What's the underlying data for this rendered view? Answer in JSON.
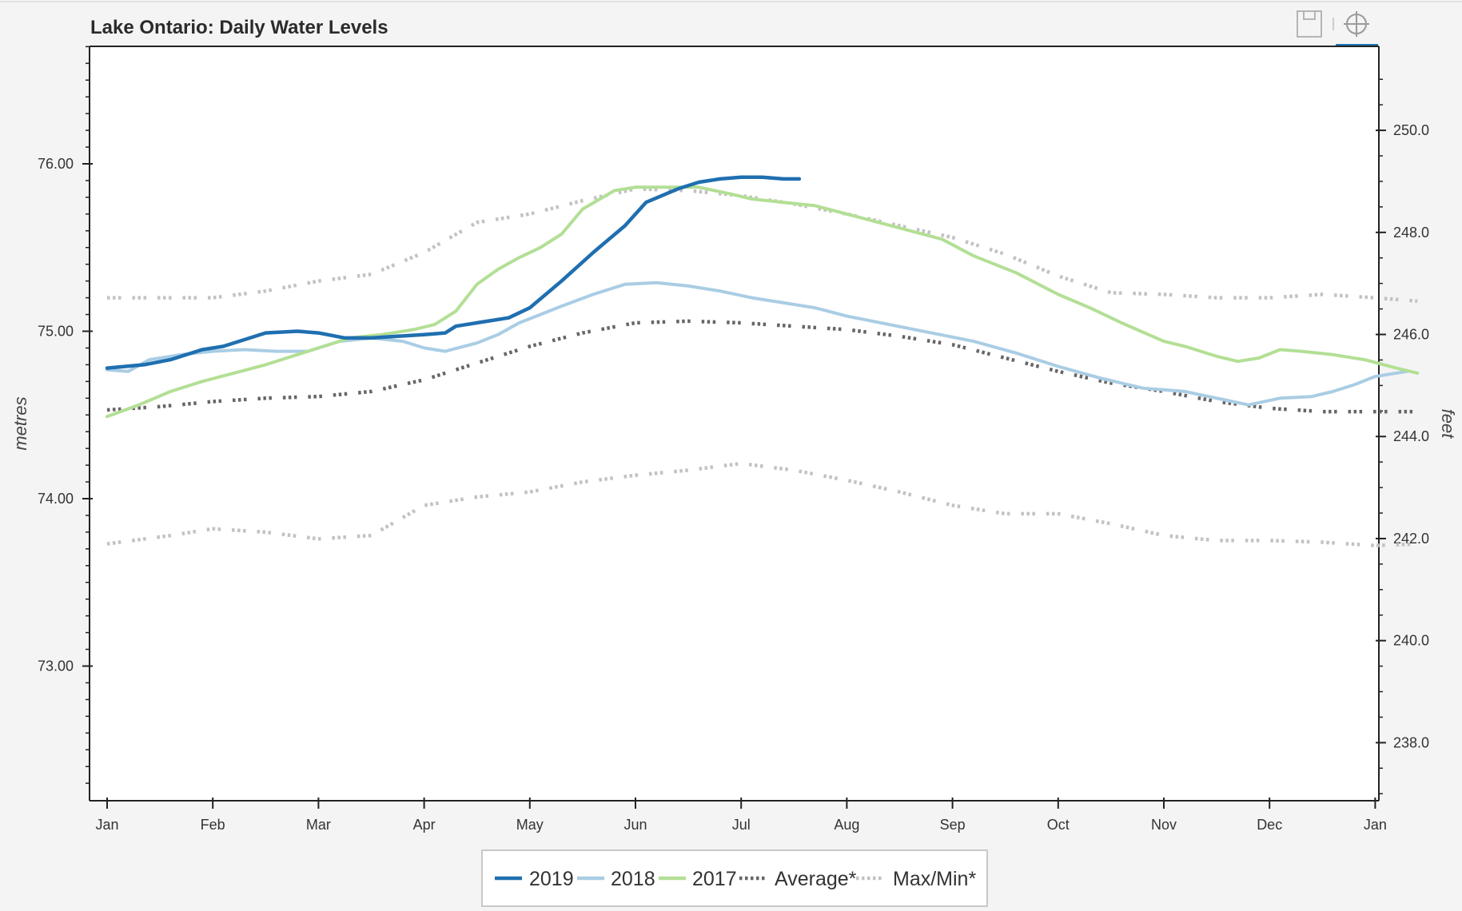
{
  "chart_data": {
    "type": "line",
    "title": "Lake Ontario: Daily Water Levels",
    "ylabel": "metres",
    "y2label": "feet",
    "ylim": [
      72.25,
      76.75
    ],
    "yticks": [
      "73.00",
      "74.00",
      "75.00",
      "76.00"
    ],
    "y2ticks": [
      "238.0",
      "240.0",
      "242.0",
      "244.0",
      "246.0",
      "248.0",
      "250.0"
    ],
    "xlim": [
      0,
      12
    ],
    "xticks": [
      "Jan",
      "Feb",
      "Mar",
      "Apr",
      "May",
      "Jun",
      "Jul",
      "Aug",
      "Sep",
      "Oct",
      "Nov",
      "Dec",
      "Jan"
    ],
    "legend_position": "bottom",
    "series": [
      {
        "name": "2019",
        "color": "#1f6fb0",
        "style": "solid",
        "points": [
          [
            0,
            74.78
          ],
          [
            0.35,
            74.8
          ],
          [
            0.6,
            74.83
          ],
          [
            0.9,
            74.89
          ],
          [
            1.1,
            74.91
          ],
          [
            1.3,
            74.95
          ],
          [
            1.5,
            74.99
          ],
          [
            1.8,
            75.0
          ],
          [
            2.0,
            74.99
          ],
          [
            2.25,
            74.96
          ],
          [
            2.5,
            74.96
          ],
          [
            2.75,
            74.97
          ],
          [
            3.0,
            74.98
          ],
          [
            3.2,
            74.99
          ],
          [
            3.3,
            75.03
          ],
          [
            3.6,
            75.06
          ],
          [
            3.8,
            75.08
          ],
          [
            4.0,
            75.14
          ],
          [
            4.3,
            75.3
          ],
          [
            4.6,
            75.47
          ],
          [
            4.9,
            75.63
          ],
          [
            5.1,
            75.77
          ],
          [
            5.4,
            75.85
          ],
          [
            5.6,
            75.89
          ],
          [
            5.8,
            75.91
          ],
          [
            6.0,
            75.92
          ],
          [
            6.2,
            75.92
          ],
          [
            6.4,
            75.91
          ],
          [
            6.55,
            75.91
          ]
        ]
      },
      {
        "name": "2018",
        "color": "#a9cde4",
        "style": "solid",
        "points": [
          [
            0,
            74.77
          ],
          [
            0.2,
            74.76
          ],
          [
            0.4,
            74.83
          ],
          [
            0.7,
            74.86
          ],
          [
            1.0,
            74.88
          ],
          [
            1.3,
            74.89
          ],
          [
            1.6,
            74.88
          ],
          [
            1.9,
            74.88
          ],
          [
            2.2,
            74.94
          ],
          [
            2.5,
            74.96
          ],
          [
            2.8,
            74.94
          ],
          [
            3.0,
            74.9
          ],
          [
            3.2,
            74.88
          ],
          [
            3.5,
            74.93
          ],
          [
            3.7,
            74.98
          ],
          [
            3.9,
            75.05
          ],
          [
            4.1,
            75.1
          ],
          [
            4.3,
            75.15
          ],
          [
            4.6,
            75.22
          ],
          [
            4.9,
            75.28
          ],
          [
            5.2,
            75.29
          ],
          [
            5.5,
            75.27
          ],
          [
            5.8,
            75.24
          ],
          [
            6.1,
            75.2
          ],
          [
            6.4,
            75.17
          ],
          [
            6.7,
            75.14
          ],
          [
            7.0,
            75.09
          ],
          [
            7.4,
            75.04
          ],
          [
            7.8,
            74.99
          ],
          [
            8.2,
            74.94
          ],
          [
            8.6,
            74.87
          ],
          [
            9.0,
            74.79
          ],
          [
            9.4,
            74.72
          ],
          [
            9.8,
            74.66
          ],
          [
            10.2,
            74.64
          ],
          [
            10.5,
            74.6
          ],
          [
            10.8,
            74.56
          ],
          [
            11.1,
            74.6
          ],
          [
            11.4,
            74.61
          ],
          [
            11.6,
            74.64
          ],
          [
            11.8,
            74.68
          ],
          [
            12.0,
            74.73
          ],
          [
            12.3,
            74.76
          ]
        ]
      },
      {
        "name": "2017",
        "color": "#b3df95",
        "style": "solid",
        "points": [
          [
            0,
            74.49
          ],
          [
            0.3,
            74.56
          ],
          [
            0.6,
            74.64
          ],
          [
            0.9,
            74.7
          ],
          [
            1.2,
            74.75
          ],
          [
            1.5,
            74.8
          ],
          [
            1.8,
            74.86
          ],
          [
            2.0,
            74.9
          ],
          [
            2.3,
            74.96
          ],
          [
            2.6,
            74.98
          ],
          [
            2.9,
            75.01
          ],
          [
            3.1,
            75.04
          ],
          [
            3.3,
            75.12
          ],
          [
            3.5,
            75.28
          ],
          [
            3.7,
            75.37
          ],
          [
            3.9,
            75.44
          ],
          [
            4.1,
            75.5
          ],
          [
            4.3,
            75.58
          ],
          [
            4.5,
            75.73
          ],
          [
            4.8,
            75.84
          ],
          [
            5.0,
            75.86
          ],
          [
            5.3,
            75.86
          ],
          [
            5.6,
            75.86
          ],
          [
            5.9,
            75.82
          ],
          [
            6.1,
            75.79
          ],
          [
            6.4,
            75.77
          ],
          [
            6.7,
            75.75
          ],
          [
            7.0,
            75.7
          ],
          [
            7.3,
            75.65
          ],
          [
            7.6,
            75.6
          ],
          [
            7.9,
            75.55
          ],
          [
            8.2,
            75.45
          ],
          [
            8.6,
            75.35
          ],
          [
            9.0,
            75.22
          ],
          [
            9.3,
            75.14
          ],
          [
            9.6,
            75.05
          ],
          [
            10.0,
            74.94
          ],
          [
            10.2,
            74.91
          ],
          [
            10.5,
            74.85
          ],
          [
            10.7,
            74.82
          ],
          [
            10.9,
            74.84
          ],
          [
            11.1,
            74.89
          ],
          [
            11.3,
            74.88
          ],
          [
            11.6,
            74.86
          ],
          [
            11.9,
            74.83
          ],
          [
            12.2,
            74.78
          ],
          [
            12.4,
            74.75
          ]
        ]
      },
      {
        "name": "Average*",
        "color": "#666666",
        "style": "dotted",
        "points": [
          [
            0,
            74.53
          ],
          [
            0.5,
            74.55
          ],
          [
            1.0,
            74.58
          ],
          [
            1.5,
            74.6
          ],
          [
            2.0,
            74.61
          ],
          [
            2.5,
            74.64
          ],
          [
            3.0,
            74.71
          ],
          [
            3.5,
            74.81
          ],
          [
            4.0,
            74.91
          ],
          [
            4.5,
            74.99
          ],
          [
            5.0,
            75.05
          ],
          [
            5.5,
            75.06
          ],
          [
            6.0,
            75.05
          ],
          [
            6.5,
            75.03
          ],
          [
            7.0,
            75.01
          ],
          [
            7.5,
            74.97
          ],
          [
            8.0,
            74.92
          ],
          [
            8.5,
            74.84
          ],
          [
            9.0,
            74.76
          ],
          [
            9.5,
            74.69
          ],
          [
            10.0,
            74.64
          ],
          [
            10.5,
            74.58
          ],
          [
            11.0,
            74.54
          ],
          [
            11.5,
            74.52
          ],
          [
            12.0,
            74.52
          ],
          [
            12.4,
            74.52
          ]
        ]
      },
      {
        "name": "Max/Min*",
        "color": "#c2c2c2",
        "style": "dotted",
        "points": [
          [
            0,
            75.2
          ],
          [
            0.6,
            75.2
          ],
          [
            1.0,
            75.2
          ],
          [
            1.5,
            75.24
          ],
          [
            2.0,
            75.3
          ],
          [
            2.5,
            75.34
          ],
          [
            3.0,
            75.47
          ],
          [
            3.5,
            75.65
          ],
          [
            4.0,
            75.7
          ],
          [
            4.5,
            75.78
          ],
          [
            5.0,
            75.85
          ],
          [
            5.5,
            75.84
          ],
          [
            6.0,
            75.81
          ],
          [
            6.5,
            75.76
          ],
          [
            7.0,
            75.7
          ],
          [
            7.5,
            75.63
          ],
          [
            8.0,
            75.56
          ],
          [
            8.5,
            75.46
          ],
          [
            9.0,
            75.33
          ],
          [
            9.5,
            75.23
          ],
          [
            10.0,
            75.22
          ],
          [
            10.5,
            75.2
          ],
          [
            11.0,
            75.2
          ],
          [
            11.5,
            75.22
          ],
          [
            12.0,
            75.2
          ],
          [
            12.4,
            75.18
          ]
        ],
        "points2": [
          [
            0,
            73.73
          ],
          [
            0.6,
            73.78
          ],
          [
            1.0,
            73.82
          ],
          [
            1.5,
            73.8
          ],
          [
            2.0,
            73.76
          ],
          [
            2.5,
            73.78
          ],
          [
            3.0,
            73.96
          ],
          [
            3.5,
            74.01
          ],
          [
            4.0,
            74.04
          ],
          [
            4.5,
            74.1
          ],
          [
            5.0,
            74.14
          ],
          [
            5.5,
            74.17
          ],
          [
            6.0,
            74.21
          ],
          [
            6.5,
            74.17
          ],
          [
            7.0,
            74.11
          ],
          [
            7.5,
            74.04
          ],
          [
            8.0,
            73.96
          ],
          [
            8.5,
            73.91
          ],
          [
            9.0,
            73.91
          ],
          [
            9.5,
            73.85
          ],
          [
            10.0,
            73.78
          ],
          [
            10.5,
            73.75
          ],
          [
            11.0,
            73.75
          ],
          [
            11.5,
            73.74
          ],
          [
            12.0,
            73.72
          ],
          [
            12.4,
            73.73
          ]
        ]
      }
    ]
  },
  "toolbar": {
    "save_icon": "floppy-disk-icon",
    "crosshair_icon": "crosshair-icon"
  }
}
